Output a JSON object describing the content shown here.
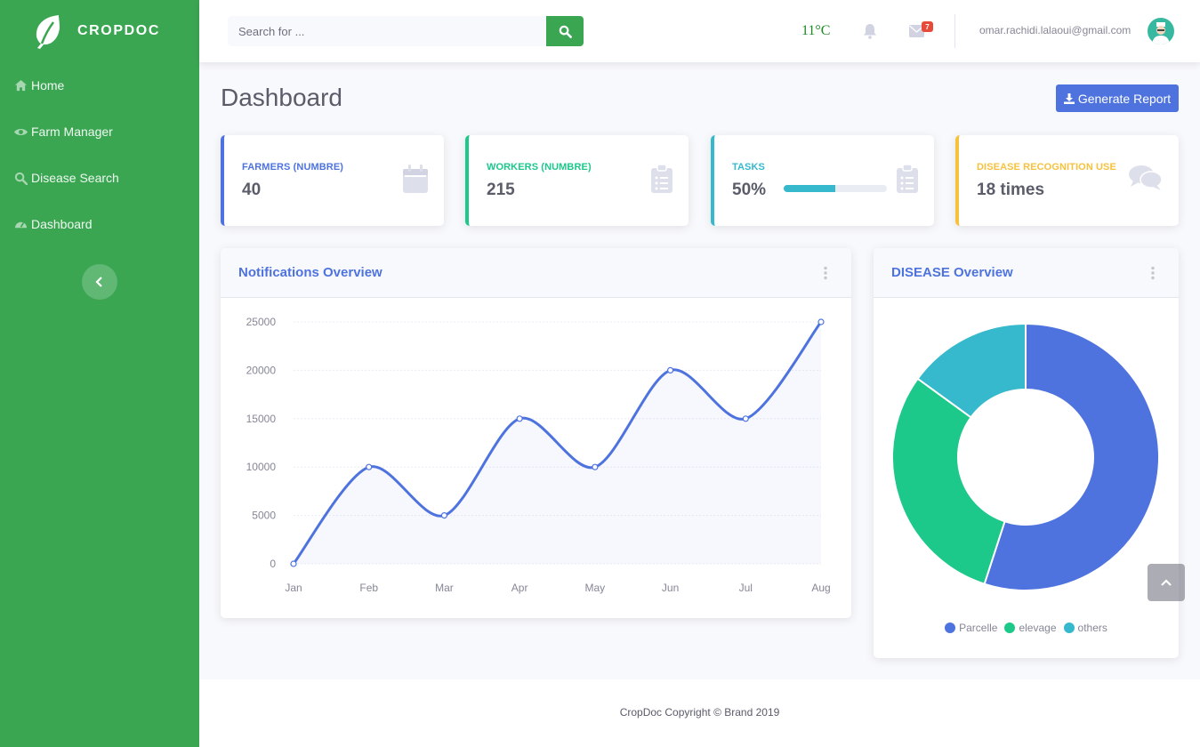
{
  "brand": {
    "name": "CROPDOC"
  },
  "sidebar": {
    "items": [
      {
        "label": "Home",
        "icon": "home-icon"
      },
      {
        "label": "Farm Manager",
        "icon": "eye-icon"
      },
      {
        "label": "Disease Search",
        "icon": "search-icon"
      },
      {
        "label": "Dashboard",
        "icon": "dashboard-icon"
      }
    ]
  },
  "topbar": {
    "search_placeholder": "Search for ...",
    "temperature": "11°C",
    "mail_count": "7",
    "user_email": "omar.rachidi.lalaoui@gmail.com"
  },
  "page": {
    "title": "Dashboard",
    "report_button": "Generate Report"
  },
  "cards": [
    {
      "label": "FARMERS (NUMBRE)",
      "value": "40",
      "color": "#4e73df"
    },
    {
      "label": "WORKERS (NUMBRE)",
      "value": "215",
      "color": "#1cc88a"
    },
    {
      "label": "TASKS",
      "value": "50%",
      "progress": 0.5,
      "color": "#36b9cc"
    },
    {
      "label": "DISEASE RECOGNITION USE",
      "value": "18 times",
      "color": "#f6c23e"
    }
  ],
  "notifications_panel": {
    "title": "Notifications Overview"
  },
  "disease_panel": {
    "title": "DISEASE Overview"
  },
  "chart_data": [
    {
      "type": "line",
      "title": "Notifications Overview",
      "categories": [
        "Jan",
        "Feb",
        "Mar",
        "Apr",
        "May",
        "Jun",
        "Jul",
        "Aug"
      ],
      "values": [
        0,
        10000,
        5000,
        15000,
        10000,
        20000,
        15000,
        25000
      ],
      "yticks": [
        "0",
        "5000",
        "10000",
        "15000",
        "20000",
        "25000"
      ],
      "ylim": [
        0,
        25000
      ],
      "grid": true,
      "color": "#4e73df"
    },
    {
      "type": "pie",
      "title": "DISEASE Overview",
      "labels": [
        "Parcelle",
        "elevage",
        "others"
      ],
      "values": [
        55,
        30,
        15
      ],
      "colors": [
        "#4e73df",
        "#1cc88a",
        "#36b9cc"
      ],
      "legend": "bottom"
    }
  ],
  "footer": {
    "text": "CropDoc Copyright © Brand 2019"
  }
}
